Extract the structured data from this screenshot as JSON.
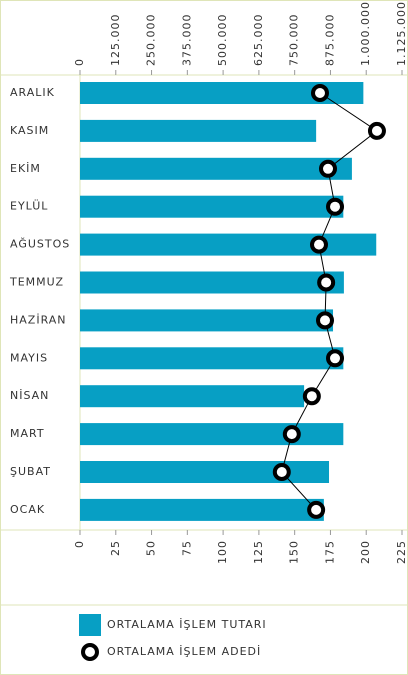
{
  "chart_data": {
    "type": "bar",
    "orientation": "horizontal",
    "categories": [
      "ARALIK",
      "KASIM",
      "EKİM",
      "EYLÜL",
      "AĞUSTOS",
      "TEMMUZ",
      "HAZİRAN",
      "MAYIS",
      "NİSAN",
      "MART",
      "ŞUBAT",
      "OCAK"
    ],
    "series": [
      {
        "name": "ORTALAMA İŞLEM TUTARI",
        "color": "#079fc4",
        "axis": "x",
        "type": "bar",
        "values": [
          990000,
          825000,
          950000,
          920000,
          1035000,
          922000,
          884000,
          920000,
          783000,
          920000,
          870000,
          852000
        ]
      },
      {
        "name": "ORTALAMA İŞLEM ADEDİ",
        "color": "#000000",
        "axis": "x2",
        "type": "line",
        "values": [
          167.7,
          207.5,
          173.3,
          178.2,
          167,
          172,
          171.2,
          178.2,
          162,
          148,
          141,
          165
        ]
      }
    ],
    "xlim": [
      0,
      1125000
    ],
    "xticks": [
      0,
      {
        "value": 125000,
        "label": "125.000"
      },
      {
        "value": 250000,
        "label": "250.000"
      },
      {
        "value": 375000,
        "label": "375.000"
      },
      {
        "value": 500000,
        "label": "500.000"
      },
      {
        "value": 625000,
        "label": "625.000"
      },
      {
        "value": 750000,
        "label": "750.000"
      },
      {
        "value": 875000,
        "label": "875.000"
      },
      {
        "value": 1000000,
        "label": "1.000.000"
      },
      {
        "value": 1125000,
        "label": "1.125.000"
      }
    ],
    "x2lim": [
      0,
      225
    ],
    "x2ticks": [
      0,
      25,
      50,
      75,
      100,
      125,
      150,
      175,
      200,
      225
    ]
  }
}
